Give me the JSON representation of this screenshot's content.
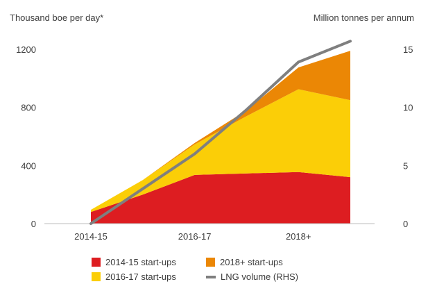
{
  "chart_data": {
    "type": "area",
    "ylabel_left": "Thousand boe per day*",
    "ylabel_right": "Million tonnes per annum",
    "x": [
      2014,
      2015,
      2016,
      2017,
      2018,
      2019
    ],
    "x_tick_labels": [
      {
        "x": 2014,
        "label": "2014-15"
      },
      {
        "x": 2016,
        "label": "2016-17"
      },
      {
        "x": 2018,
        "label": "2018+"
      }
    ],
    "ylim_left": [
      0,
      1200
    ],
    "yticks_left": [
      0,
      400,
      800,
      1200
    ],
    "ylim_right": [
      0,
      15
    ],
    "yticks_right": [
      0,
      5,
      10,
      15
    ],
    "series": [
      {
        "name": "2014-15 start-ups",
        "axis": "left",
        "kind": "stacked-area",
        "color": "#dd1d21",
        "values": [
          80,
          200,
          335,
          345,
          355,
          320
        ]
      },
      {
        "name": "2016-17 start-ups",
        "axis": "left",
        "kind": "stacked-area",
        "color": "#fbce07",
        "values": [
          15,
          100,
          210,
          395,
          570,
          530
        ]
      },
      {
        "name": "2018+ start-ups",
        "axis": "left",
        "kind": "stacked-area",
        "color": "#eb8705",
        "values": [
          0,
          0,
          10,
          40,
          150,
          340
        ]
      },
      {
        "name": "LNG volume (RHS)",
        "axis": "right",
        "kind": "line",
        "color": "#7f7f7f",
        "values": [
          0,
          3,
          6,
          9.8,
          13.9,
          15.7
        ]
      }
    ]
  }
}
